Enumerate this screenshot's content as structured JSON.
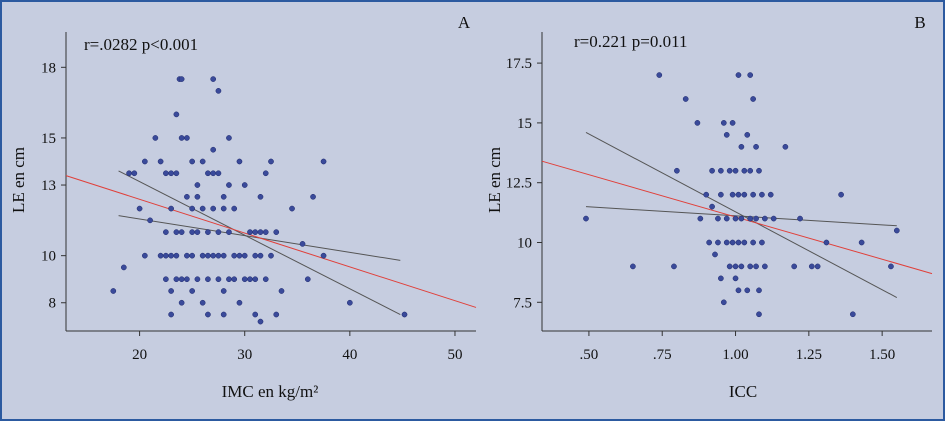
{
  "chart_data": [
    {
      "type": "scatter",
      "panel_letter": "A",
      "annotation": "r=.0282 p<0.001",
      "xlabel": "IMC en kg/m²",
      "ylabel": "LE en cm",
      "xlim": [
        13,
        52
      ],
      "ylim": [
        6.8,
        19.5
      ],
      "xticks": [
        20,
        30,
        40,
        50
      ],
      "xtick_labels": [
        "20",
        "30",
        "40",
        "50"
      ],
      "yticks": [
        8,
        10,
        13,
        15,
        18
      ],
      "ytick_labels": [
        "8",
        "10",
        "13",
        "15",
        "18"
      ],
      "points": [
        [
          17.5,
          8.5
        ],
        [
          18.5,
          9.5
        ],
        [
          19,
          13.5
        ],
        [
          19.5,
          13.5
        ],
        [
          20,
          12
        ],
        [
          20.5,
          10
        ],
        [
          20.5,
          14
        ],
        [
          21,
          11.5
        ],
        [
          21.5,
          15
        ],
        [
          22,
          14
        ],
        [
          22,
          10
        ],
        [
          22.5,
          9
        ],
        [
          22.5,
          13.5
        ],
        [
          22.5,
          11
        ],
        [
          22.5,
          10
        ],
        [
          23,
          13.5
        ],
        [
          23,
          12
        ],
        [
          23,
          10
        ],
        [
          23,
          8.5
        ],
        [
          23,
          7.5
        ],
        [
          23.5,
          16
        ],
        [
          23.5,
          13.5
        ],
        [
          23.5,
          11
        ],
        [
          23.5,
          10
        ],
        [
          23.5,
          9
        ],
        [
          23.8,
          17.5
        ],
        [
          24,
          17.5
        ],
        [
          24,
          15
        ],
        [
          24,
          11
        ],
        [
          24,
          9
        ],
        [
          24,
          8
        ],
        [
          24.5,
          15
        ],
        [
          24.5,
          12.5
        ],
        [
          24.5,
          10
        ],
        [
          24.5,
          9
        ],
        [
          25,
          14
        ],
        [
          25,
          12
        ],
        [
          25,
          11
        ],
        [
          25,
          10
        ],
        [
          25,
          8.5
        ],
        [
          25.5,
          13
        ],
        [
          25.5,
          12.5
        ],
        [
          25.5,
          11
        ],
        [
          25.5,
          9
        ],
        [
          26,
          14
        ],
        [
          26,
          12
        ],
        [
          26,
          10
        ],
        [
          26,
          8
        ],
        [
          26.5,
          13.5
        ],
        [
          26.5,
          11
        ],
        [
          26.5,
          10
        ],
        [
          26.5,
          9
        ],
        [
          26.5,
          7.5
        ],
        [
          27,
          14.5
        ],
        [
          27,
          17.5
        ],
        [
          27,
          13.5
        ],
        [
          27,
          12
        ],
        [
          27,
          10
        ],
        [
          27.5,
          17
        ],
        [
          27.5,
          13.5
        ],
        [
          27.5,
          11
        ],
        [
          27.5,
          10
        ],
        [
          27.5,
          9
        ],
        [
          28,
          12.5
        ],
        [
          28,
          12
        ],
        [
          28,
          10
        ],
        [
          28,
          8.5
        ],
        [
          28,
          7.5
        ],
        [
          28.5,
          15
        ],
        [
          28.5,
          13
        ],
        [
          28.5,
          11
        ],
        [
          28.5,
          9
        ],
        [
          29,
          12
        ],
        [
          29,
          10
        ],
        [
          29,
          9
        ],
        [
          29.5,
          14
        ],
        [
          29.5,
          10
        ],
        [
          29.5,
          8
        ],
        [
          30,
          13
        ],
        [
          30,
          10
        ],
        [
          30,
          9
        ],
        [
          30.5,
          11
        ],
        [
          30.5,
          9
        ],
        [
          31,
          11
        ],
        [
          31,
          10
        ],
        [
          31,
          9
        ],
        [
          31,
          7.5
        ],
        [
          31.5,
          12.5
        ],
        [
          31.5,
          11
        ],
        [
          31.5,
          10
        ],
        [
          31.5,
          7.2
        ],
        [
          32,
          13.5
        ],
        [
          32,
          11
        ],
        [
          32,
          9
        ],
        [
          32.5,
          14
        ],
        [
          32.5,
          10
        ],
        [
          33,
          11
        ],
        [
          33,
          7.5
        ],
        [
          33.5,
          8.5
        ],
        [
          34.5,
          12
        ],
        [
          35.5,
          10.5
        ],
        [
          36,
          9
        ],
        [
          36.5,
          12.5
        ],
        [
          37.5,
          14
        ],
        [
          37.5,
          10
        ],
        [
          40,
          8
        ],
        [
          45.2,
          7.5
        ]
      ],
      "fit_line": {
        "x": [
          13,
          52
        ],
        "y": [
          13.4,
          7.8
        ]
      },
      "ci_upper": {
        "x": [
          18,
          44.8
        ],
        "y": [
          11.7,
          9.8
        ]
      },
      "ci_lower": {
        "x": [
          18,
          44.8
        ],
        "y": [
          13.6,
          7.5
        ]
      }
    },
    {
      "type": "scatter",
      "panel_letter": "B",
      "annotation": "r=0.221 p=0.011",
      "xlabel": "ICC",
      "ylabel": "LE en cm",
      "xlim": [
        0.34,
        1.67
      ],
      "ylim": [
        6.3,
        18.8
      ],
      "xticks": [
        0.5,
        0.75,
        1.0,
        1.25,
        1.5
      ],
      "xtick_labels": [
        ".50",
        ".75",
        "1.00",
        "1.25",
        "1.50"
      ],
      "yticks": [
        7.5,
        10,
        12.5,
        15,
        17.5
      ],
      "ytick_labels": [
        "7.5",
        "10",
        "12.5",
        "15",
        "17.5"
      ],
      "points": [
        [
          0.49,
          11
        ],
        [
          0.65,
          9
        ],
        [
          0.74,
          17
        ],
        [
          0.79,
          9
        ],
        [
          0.8,
          13
        ],
        [
          0.83,
          16
        ],
        [
          0.87,
          15
        ],
        [
          0.88,
          11
        ],
        [
          0.9,
          12
        ],
        [
          0.91,
          10
        ],
        [
          0.92,
          13
        ],
        [
          0.92,
          11.5
        ],
        [
          0.93,
          9.5
        ],
        [
          0.94,
          11
        ],
        [
          0.94,
          10
        ],
        [
          0.95,
          13
        ],
        [
          0.95,
          12
        ],
        [
          0.95,
          8.5
        ],
        [
          0.96,
          7.5
        ],
        [
          0.96,
          15
        ],
        [
          0.97,
          14.5
        ],
        [
          0.97,
          11
        ],
        [
          0.97,
          10
        ],
        [
          0.98,
          9
        ],
        [
          0.98,
          13
        ],
        [
          0.99,
          15
        ],
        [
          0.99,
          12
        ],
        [
          0.99,
          10
        ],
        [
          1.0,
          11
        ],
        [
          1.0,
          9
        ],
        [
          1.0,
          8.5
        ],
        [
          1.0,
          13
        ],
        [
          1.01,
          17
        ],
        [
          1.01,
          12
        ],
        [
          1.01,
          10
        ],
        [
          1.01,
          8
        ],
        [
          1.02,
          14
        ],
        [
          1.02,
          11
        ],
        [
          1.02,
          9
        ],
        [
          1.03,
          13
        ],
        [
          1.03,
          12
        ],
        [
          1.03,
          10
        ],
        [
          1.04,
          14.5
        ],
        [
          1.04,
          8
        ],
        [
          1.05,
          17
        ],
        [
          1.05,
          11
        ],
        [
          1.05,
          9
        ],
        [
          1.05,
          13
        ],
        [
          1.06,
          12
        ],
        [
          1.06,
          10
        ],
        [
          1.06,
          16
        ],
        [
          1.07,
          14
        ],
        [
          1.07,
          11
        ],
        [
          1.07,
          9
        ],
        [
          1.08,
          8
        ],
        [
          1.08,
          13
        ],
        [
          1.08,
          7
        ],
        [
          1.09,
          12
        ],
        [
          1.09,
          10
        ],
        [
          1.1,
          11
        ],
        [
          1.1,
          9
        ],
        [
          1.12,
          12
        ],
        [
          1.13,
          11
        ],
        [
          1.17,
          14
        ],
        [
          1.2,
          9
        ],
        [
          1.22,
          11
        ],
        [
          1.26,
          9
        ],
        [
          1.28,
          9
        ],
        [
          1.31,
          10
        ],
        [
          1.36,
          12
        ],
        [
          1.4,
          7
        ],
        [
          1.43,
          10
        ],
        [
          1.53,
          9
        ],
        [
          1.55,
          10.5
        ]
      ],
      "fit_line": {
        "x": [
          0.34,
          1.67
        ],
        "y": [
          13.4,
          8.7
        ]
      },
      "ci_upper": {
        "x": [
          0.49,
          1.55
        ],
        "y": [
          14.6,
          7.7
        ]
      },
      "ci_lower": {
        "x": [
          0.49,
          1.55
        ],
        "y": [
          11.5,
          10.7
        ]
      }
    }
  ],
  "colors": {
    "background": "#c6cde0",
    "point": "#3a4a9a",
    "fit": "#e0403a",
    "ci": "#555555",
    "axis": "#333333"
  }
}
